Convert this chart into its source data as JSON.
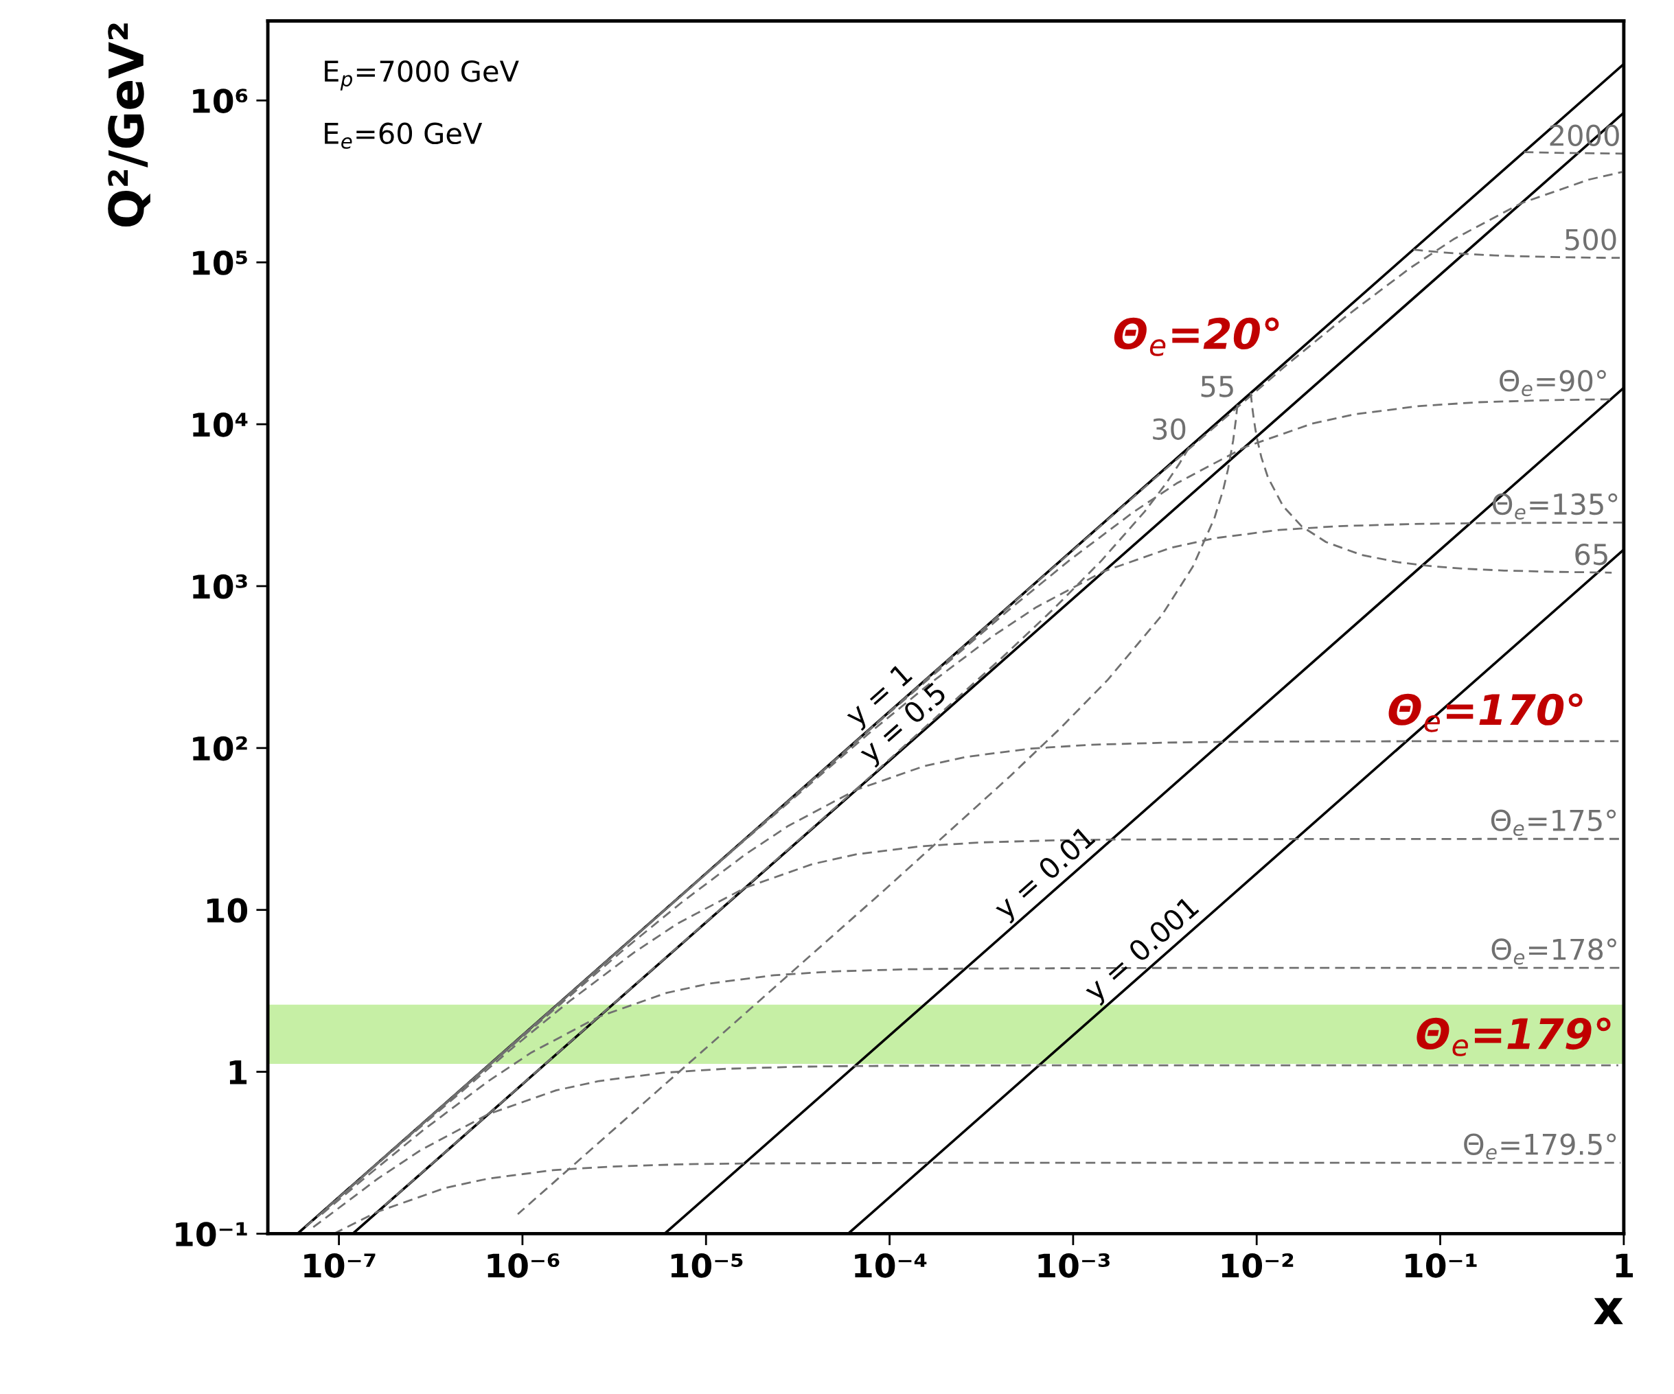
{
  "chart_data": {
    "type": "line",
    "log": "xy",
    "grid": false,
    "xlabel": "x",
    "ylabel": "Q²/GeV²",
    "xlim": [
      4.1e-08,
      1
    ],
    "ylim": [
      0.1,
      3100000.0
    ],
    "xticks": [
      {
        "value": 1e-07,
        "label": "10⁻⁷"
      },
      {
        "value": 1e-06,
        "label": "10⁻⁶"
      },
      {
        "value": 1e-05,
        "label": "10⁻⁵"
      },
      {
        "value": 0.0001,
        "label": "10⁻⁴"
      },
      {
        "value": 0.001,
        "label": "10⁻³"
      },
      {
        "value": 0.01,
        "label": "10⁻²"
      },
      {
        "value": 0.1,
        "label": "10⁻¹"
      },
      1
    ],
    "yticks": [
      {
        "value": 0.1,
        "label": "10⁻¹"
      },
      1,
      10,
      {
        "value": 100,
        "label": "10²"
      },
      {
        "value": 1000,
        "label": "10³"
      },
      {
        "value": 10000,
        "label": "10⁴"
      },
      {
        "value": 100000,
        "label": "10⁵"
      },
      {
        "value": 1000000,
        "label": "10⁶"
      }
    ],
    "bands": [
      {
        "axis": "y",
        "from": 1.12,
        "to": 2.6,
        "color": "#c6efa5"
      }
    ],
    "series": [
      {
        "name": "y = 1",
        "color": "#000000",
        "line_style": "solid",
        "x": [
          5.95e-08,
          0.0001,
          1
        ],
        "values": [
          0.1,
          168,
          1680000
        ]
      },
      {
        "name": "y = 0.5",
        "color": "#000000",
        "line_style": "solid",
        "x": [
          1.19e-07,
          0.000135,
          1
        ],
        "values": [
          0.1,
          113,
          840000
        ]
      },
      {
        "name": "y = 0.01",
        "color": "#000000",
        "line_style": "solid",
        "x": [
          5.95e-06,
          0.0008,
          1
        ],
        "values": [
          0.1,
          13.4,
          16800
        ]
      },
      {
        "name": "y = 0.001",
        "color": "#000000",
        "line_style": "solid",
        "x": [
          5.95e-05,
          0.0027,
          1
        ],
        "values": [
          0.1,
          4.54,
          1680
        ]
      },
      {
        "color": "#707070",
        "line_style": "dashed",
        "x": [
          2.76e-07,
          2.76e-06,
          2.76e-05,
          0.000276,
          0.002785,
          0.01451,
          0.03063,
          0.06893,
          0.1182,
          0.2757,
          0.6433,
          0.9775
        ],
        "values": [
          0.463,
          4.63,
          46.3,
          463,
          4632,
          23160,
          46315,
          92630,
          138900,
          231600,
          324200,
          361260
        ]
      },
      {
        "name": "Θ$_{e}$=90°",
        "color": "#707070",
        "line_style": "dashed",
        "x": [
          8.57e-08,
          8.57e-07,
          8.58e-06,
          8.66e-05,
          0.000451,
          0.000952,
          0.002143,
          0.003673,
          0.008571,
          0.02,
          0.03428,
          0.07714,
          0.1628,
          0.42,
          0.8486
        ],
        "values": [
          0.144,
          1.44,
          14.4,
          144,
          720,
          1440,
          2880,
          4320,
          7200,
          10080,
          11520,
          12960,
          13680,
          14112,
          14256
        ]
      },
      {
        "name": "Θ$_{e}$=135°",
        "color": "#707070",
        "line_style": "dashed",
        "x": [
          1.47e-07,
          1.472e-06,
          1.486e-05,
          7.74e-05,
          0.0001634,
          0.0003677,
          0.00063,
          0.0014706,
          0.003431,
          0.00588,
          0.01324,
          0.02794,
          0.07206,
          0.1456,
          0.2927,
          0.7338,
          0.979
        ],
        "values": [
          0.247,
          2.47,
          24.7,
          123.5,
          247,
          494,
          741,
          1235,
          1729,
          1976,
          2224,
          2347,
          2421,
          2446,
          2458,
          2466,
          2467
        ]
      },
      {
        "color": "#707070",
        "line_style": "dashed",
        "x": [
          6.57e-08,
          6.63e-07,
          3.45e-06,
          7.29e-06,
          1.64e-05,
          2.81e-05,
          6.56e-05,
          0.0001531,
          0.0002624,
          0.00059,
          0.001246,
          0.003214,
          0.00649,
          0.01305,
          0.03273,
          0.06553,
          0.1311,
          0.656,
          0.937
        ],
        "values": [
          0.11,
          1.102,
          5.51,
          11.02,
          22.04,
          33.06,
          55.1,
          77.1,
          88.2,
          99.2,
          104.7,
          108.0,
          109.1,
          109.6,
          110.0,
          110.1,
          110.1,
          110.2,
          110.2
        ]
      },
      {
        "name": "Θ$_{e}$=175°",
        "color": "#707070",
        "line_style": "dashed",
        "x": [
          8.2e-08,
          1.65e-07,
          8.6e-07,
          1.816e-06,
          4.085e-06,
          7e-06,
          1.634e-05,
          3.81e-05,
          6.54e-05,
          0.0001471,
          0.00031,
          0.0008,
          0.001618,
          0.01632,
          0.1634,
          0.961
        ],
        "values": [
          0.137,
          0.2745,
          1.37,
          2.745,
          5.49,
          8.24,
          13.7,
          19.2,
          22.0,
          24.7,
          26.1,
          26.9,
          27.2,
          27.4,
          27.45,
          27.45
        ]
      },
      {
        "name": "Θ$_{e}$=178°",
        "color": "#707070",
        "line_style": "dashed",
        "x": [
          8.07e-08,
          1.37e-07,
          2.9e-07,
          6.53e-07,
          1.119e-06,
          2.611e-06,
          6.09e-06,
          1.044e-05,
          2.35e-05,
          4.96e-05,
          0.000128,
          0.0002585,
          0.00261,
          0.0261,
          0.261,
          0.967
        ],
        "values": [
          0.132,
          0.219,
          0.439,
          0.877,
          1.316,
          2.19,
          3.07,
          3.51,
          3.95,
          4.17,
          4.3,
          4.34,
          4.38,
          4.39,
          4.39,
          4.39
        ]
      },
      {
        "color": "#707070",
        "line_style": "dashed",
        "x": [
          7.25e-08,
          1.632e-07,
          2.8e-07,
          6.53e-07,
          1.523e-06,
          2.611e-06,
          5.875e-06,
          1.24e-05,
          3.2e-05,
          6.46e-05,
          0.000652,
          0.00653,
          0.0653,
          0.933
        ],
        "values": [
          0.1097,
          0.219,
          0.329,
          0.548,
          0.768,
          0.877,
          0.987,
          1.042,
          1.075,
          1.086,
          1.096,
          1.097,
          1.097,
          1.097
        ]
      },
      {
        "name": "Θ$_{e}$=179.5°",
        "color": "#707070",
        "line_style": "dashed",
        "x": [
          9.38e-08,
          1.632e-07,
          3.81e-07,
          6.53e-07,
          1.469e-06,
          3.1e-06,
          8e-06,
          1.616e-05,
          0.000163,
          0.001632,
          0.01632,
          0.96
        ],
        "values": [
          0.1,
          0.137,
          0.192,
          0.219,
          0.247,
          0.26,
          0.269,
          0.2714,
          0.2739,
          0.2741,
          0.2742,
          0.2742
        ]
      },
      {
        "name": "2000",
        "color": "#707070",
        "line_style": "dashed",
        "x": [
          0.2857,
          0.3411,
          0.4243,
          0.5629,
          0.84,
          0.987
        ],
        "values": [
          480000,
          477600,
          475200,
          472800,
          470400,
          469700
        ]
      },
      {
        "name": "500",
        "color": "#707070",
        "line_style": "dashed",
        "x": [
          0.07143,
          0.084,
          0.1029,
          0.1343,
          0.1971,
          0.26,
          0.3857,
          0.5114,
          0.763,
          0.951
        ],
        "values": [
          120000,
          117600,
          115200,
          112800,
          110400,
          109200,
          108000,
          107400,
          106800,
          106560
        ]
      },
      {
        "name": "65",
        "color": "#707070",
        "line_style": "dashed",
        "x": [
          0.009286,
          0.009372,
          0.009483,
          0.00963,
          0.00983,
          0.01013,
          0.01061,
          0.01153,
          0.01393,
          0.01759,
          0.02387,
          0.03714,
          0.059,
          0.0902,
          0.1384,
          0.2229,
          0.4264,
          0.859
        ],
        "values": [
          15600,
          14040,
          12480,
          10920,
          9360,
          7800,
          6240,
          4680,
          3120,
          2340,
          1872,
          1560,
          1404,
          1326,
          1279,
          1248,
          1225,
          1212
        ]
      },
      {
        "name": "55",
        "color": "#707070",
        "line_style": "dashed",
        "x": [
          0.007857,
          0.007696,
          0.007444,
          0.006984,
          0.006578,
          0.005892,
          0.00449,
          0.003041,
          0.001545,
          0.000849,
          0.000447,
          9.33e-05,
          9.42e-06,
          9.43e-07
        ],
        "values": [
          13200,
          10560,
          7920,
          5280,
          3960,
          2640,
          1320,
          660,
          264,
          132,
          66,
          13.2,
          1.32,
          0.132
        ]
      },
      {
        "name": "30",
        "color": "#707070",
        "line_style": "dashed",
        "x": [
          0.004286,
          0.00381,
          0.003214,
          0.002449,
          0.001429,
          0.000779,
          0.000408,
          8.49e-05,
          8.56e-06,
          8.57e-07,
          1.71e-07
        ],
        "values": [
          7200,
          5760,
          4320,
          2880,
          1440,
          720,
          360,
          72,
          7.2,
          0.72,
          0.144
        ]
      }
    ],
    "annotations": [
      "E$_{p}$=7000 GeV",
      "E$_{e}$=60 GeV",
      {
        "text": "Θ$_{e}$=20°",
        "x": 0.01451,
        "y": 23160
      },
      {
        "text": "Θ$_{e}$=170°",
        "x": 0.656,
        "y": 110.2
      },
      {
        "text": "Θ$_{e}$=179°",
        "x": 0.933,
        "y": 1.097
      }
    ]
  }
}
